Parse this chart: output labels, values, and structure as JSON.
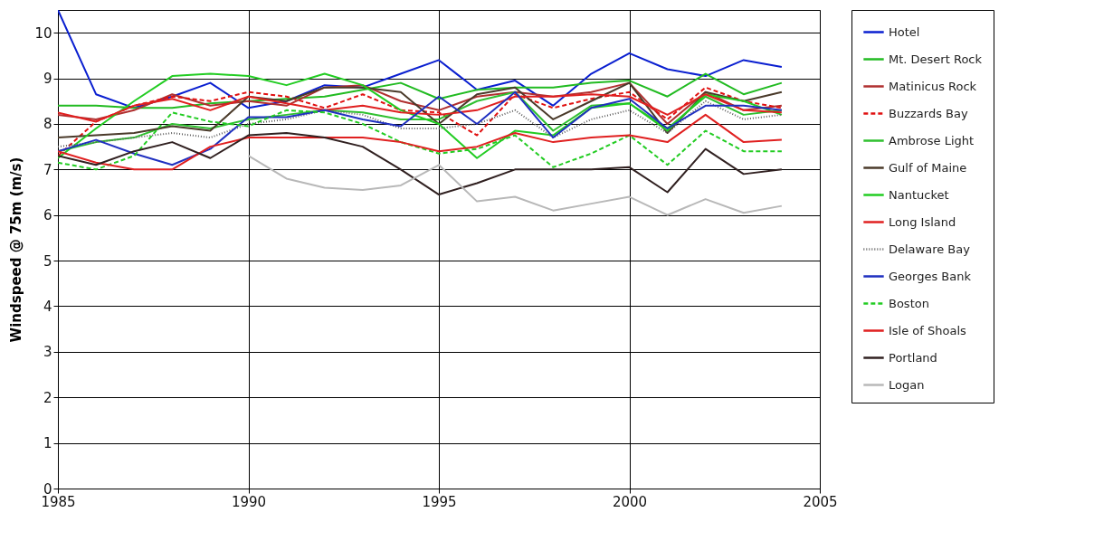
{
  "chart_data": {
    "type": "line",
    "ylabel": "Windspeed @ 75m (m/s)",
    "x": [
      1985,
      1986,
      1987,
      1988,
      1989,
      1990,
      1991,
      1992,
      1993,
      1994,
      1995,
      1996,
      1997,
      1998,
      1999,
      2000,
      2001,
      2002,
      2003,
      2004
    ],
    "xlim": [
      1985,
      2005
    ],
    "xticks": [
      1985,
      1990,
      1995,
      2000,
      2005
    ],
    "ylim": [
      0,
      10.5
    ],
    "yticks": [
      0,
      1,
      2,
      3,
      4,
      5,
      6,
      7,
      8,
      9,
      10
    ],
    "grid": true,
    "legend": "right",
    "series": [
      {
        "name": "Hotel",
        "color": "#0a1fd0",
        "values": [
          10.5,
          8.65,
          8.35,
          8.6,
          8.9,
          8.35,
          8.5,
          8.85,
          8.8,
          9.1,
          9.4,
          8.75,
          8.95,
          8.4,
          9.1,
          9.55,
          9.2,
          9.05,
          9.4,
          9.25
        ]
      },
      {
        "name": "Mt. Desert Rock",
        "color": "#22bb22",
        "values": [
          8.4,
          8.4,
          8.35,
          8.35,
          8.45,
          8.5,
          8.55,
          8.6,
          8.75,
          8.9,
          8.55,
          8.75,
          8.8,
          8.8,
          8.9,
          8.95,
          8.6,
          9.1,
          8.65,
          8.9
        ]
      },
      {
        "name": "Matinicus Rock",
        "color": "#b03030",
        "values": [
          8.2,
          8.1,
          8.3,
          8.65,
          8.4,
          8.5,
          8.4,
          8.8,
          8.85,
          8.5,
          8.3,
          8.6,
          8.7,
          8.6,
          8.7,
          8.9,
          8.0,
          8.7,
          8.3,
          8.4
        ]
      },
      {
        "name": "Buzzards Bay",
        "color": "#e01010",
        "line_style": "dashed",
        "values": [
          7.3,
          8.05,
          8.4,
          8.6,
          8.5,
          8.7,
          8.6,
          8.35,
          8.65,
          8.3,
          8.25,
          7.75,
          8.65,
          8.35,
          8.55,
          8.7,
          8.1,
          8.8,
          8.5,
          8.35
        ]
      },
      {
        "name": "Ambrose Light",
        "color": "#30c030",
        "values": [
          7.4,
          7.6,
          7.7,
          8.0,
          7.9,
          8.1,
          8.2,
          8.3,
          8.25,
          8.1,
          8.1,
          8.5,
          8.7,
          7.85,
          8.4,
          8.45,
          7.9,
          8.6,
          8.2,
          8.3
        ]
      },
      {
        "name": "Gulf of Maine",
        "color": "#4a3a2a",
        "values": [
          7.7,
          7.75,
          7.8,
          7.95,
          7.85,
          8.6,
          8.5,
          8.8,
          8.8,
          8.7,
          8.0,
          8.65,
          8.8,
          8.1,
          8.5,
          8.9,
          7.8,
          8.7,
          8.5,
          8.7
        ]
      },
      {
        "name": "Nantucket",
        "color": "#22cc22",
        "values": [
          7.25,
          7.9,
          8.5,
          9.05,
          9.1,
          9.05,
          8.85,
          9.1,
          8.85,
          8.3,
          8.0,
          7.25,
          7.85,
          7.75,
          8.35,
          8.45,
          7.85,
          8.65,
          8.5,
          8.2
        ]
      },
      {
        "name": "Long Island",
        "color": "#e02020",
        "values": [
          8.25,
          8.05,
          8.4,
          8.55,
          8.3,
          8.6,
          8.45,
          8.3,
          8.4,
          8.25,
          8.2,
          8.3,
          8.6,
          8.6,
          8.65,
          8.6,
          8.2,
          8.65,
          8.3,
          8.25
        ]
      },
      {
        "name": "Delaware Bay",
        "color": "#606060",
        "line_style": "dotted",
        "values": [
          7.5,
          7.6,
          7.7,
          7.8,
          7.7,
          8.0,
          8.1,
          8.3,
          8.2,
          7.9,
          7.9,
          8.0,
          8.3,
          7.7,
          8.1,
          8.3,
          7.8,
          8.5,
          8.1,
          8.2
        ]
      },
      {
        "name": "Georges Bank",
        "color": "#2030c0",
        "values": [
          7.4,
          7.65,
          7.35,
          7.1,
          7.45,
          8.15,
          8.15,
          8.3,
          8.1,
          7.95,
          8.6,
          8.0,
          8.7,
          7.7,
          8.35,
          8.55,
          7.9,
          8.4,
          8.4,
          8.3
        ]
      },
      {
        "name": "Boston",
        "color": "#22cc22",
        "line_style": "dashed",
        "values": [
          7.15,
          7.0,
          7.3,
          8.25,
          8.05,
          7.95,
          8.3,
          8.25,
          8.0,
          7.6,
          7.35,
          7.45,
          7.75,
          7.05,
          7.35,
          7.75,
          7.1,
          7.85,
          7.4,
          7.4
        ]
      },
      {
        "name": "Isle of Shoals",
        "color": "#e02020",
        "values": [
          7.4,
          7.15,
          7.0,
          7.0,
          7.5,
          7.7,
          7.7,
          7.7,
          7.7,
          7.6,
          7.4,
          7.5,
          7.8,
          7.6,
          7.7,
          7.75,
          7.6,
          8.2,
          7.6,
          7.65
        ]
      },
      {
        "name": "Portland",
        "color": "#302020",
        "values": [
          7.3,
          7.1,
          7.4,
          7.6,
          7.25,
          7.75,
          7.8,
          7.7,
          7.5,
          7.0,
          6.45,
          6.7,
          7.0,
          7.0,
          7.0,
          7.05,
          6.5,
          7.45,
          6.9,
          7.0
        ]
      },
      {
        "name": "Logan",
        "color": "#b8b8b8",
        "values": [
          null,
          null,
          null,
          null,
          null,
          7.3,
          6.8,
          6.6,
          6.55,
          6.65,
          7.1,
          6.3,
          6.4,
          6.1,
          6.25,
          6.4,
          6.0,
          6.35,
          6.05,
          6.2
        ]
      }
    ]
  }
}
